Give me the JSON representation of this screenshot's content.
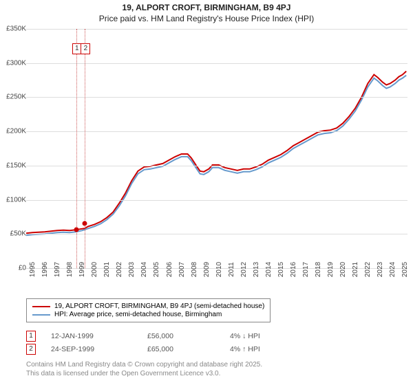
{
  "title_line1": "19, ALPORT CROFT, BIRMINGHAM, B9 4PJ",
  "title_line2": "Price paid vs. HM Land Registry's House Price Index (HPI)",
  "chart": {
    "type": "line",
    "background_color": "#ffffff",
    "grid_color": "#dddddd",
    "axis_color": "#888888",
    "ylim": [
      0,
      350000
    ],
    "ytick_step": 50000,
    "ytick_labels": [
      "£0",
      "£50K",
      "£100K",
      "£150K",
      "£200K",
      "£250K",
      "£300K",
      "£350K"
    ],
    "xlim": [
      1995,
      2025.7
    ],
    "xtick_years": [
      1995,
      1996,
      1997,
      1998,
      1999,
      2000,
      2001,
      2002,
      2003,
      2004,
      2005,
      2006,
      2007,
      2008,
      2009,
      2010,
      2011,
      2012,
      2013,
      2014,
      2015,
      2016,
      2017,
      2018,
      2019,
      2020,
      2021,
      2022,
      2023,
      2024,
      2025
    ],
    "title_fontsize": 12,
    "label_fontsize": 10,
    "series": [
      {
        "name": "property",
        "label": "19, ALPORT CROFT, BIRMINGHAM, B9 4PJ (semi-detached house)",
        "color": "#cc0000",
        "line_width": 2,
        "points": [
          [
            1995.0,
            51000
          ],
          [
            1995.5,
            52000
          ],
          [
            1996.0,
            52500
          ],
          [
            1996.5,
            53000
          ],
          [
            1997.0,
            54000
          ],
          [
            1997.5,
            55000
          ],
          [
            1998.0,
            55500
          ],
          [
            1998.5,
            55000
          ],
          [
            1999.0,
            56000
          ],
          [
            1999.3,
            57000
          ],
          [
            1999.7,
            58000
          ],
          [
            2000.0,
            61000
          ],
          [
            2000.5,
            64000
          ],
          [
            2001.0,
            68000
          ],
          [
            2001.5,
            74000
          ],
          [
            2002.0,
            82000
          ],
          [
            2002.5,
            95000
          ],
          [
            2003.0,
            110000
          ],
          [
            2003.5,
            128000
          ],
          [
            2004.0,
            142000
          ],
          [
            2004.5,
            148000
          ],
          [
            2005.0,
            149000
          ],
          [
            2005.5,
            151000
          ],
          [
            2006.0,
            153000
          ],
          [
            2006.5,
            158000
          ],
          [
            2007.0,
            163000
          ],
          [
            2007.5,
            167000
          ],
          [
            2008.0,
            167000
          ],
          [
            2008.3,
            161000
          ],
          [
            2008.7,
            150000
          ],
          [
            2009.0,
            142000
          ],
          [
            2009.3,
            141000
          ],
          [
            2009.7,
            145000
          ],
          [
            2010.0,
            151000
          ],
          [
            2010.5,
            151000
          ],
          [
            2011.0,
            147000
          ],
          [
            2011.5,
            145000
          ],
          [
            2012.0,
            143000
          ],
          [
            2012.5,
            145000
          ],
          [
            2013.0,
            145000
          ],
          [
            2013.5,
            148000
          ],
          [
            2014.0,
            152000
          ],
          [
            2014.5,
            158000
          ],
          [
            2015.0,
            162000
          ],
          [
            2015.5,
            166000
          ],
          [
            2016.0,
            172000
          ],
          [
            2016.5,
            179000
          ],
          [
            2017.0,
            184000
          ],
          [
            2017.5,
            189000
          ],
          [
            2018.0,
            194000
          ],
          [
            2018.5,
            199000
          ],
          [
            2019.0,
            201000
          ],
          [
            2019.5,
            202000
          ],
          [
            2020.0,
            205000
          ],
          [
            2020.5,
            212000
          ],
          [
            2021.0,
            222000
          ],
          [
            2021.5,
            234000
          ],
          [
            2022.0,
            250000
          ],
          [
            2022.5,
            270000
          ],
          [
            2023.0,
            283000
          ],
          [
            2023.3,
            279000
          ],
          [
            2023.7,
            272000
          ],
          [
            2024.0,
            268000
          ],
          [
            2024.3,
            270000
          ],
          [
            2024.7,
            275000
          ],
          [
            2025.0,
            280000
          ],
          [
            2025.3,
            283000
          ],
          [
            2025.6,
            288000
          ]
        ]
      },
      {
        "name": "hpi",
        "label": "HPI: Average price, semi-detached house, Birmingham",
        "color": "#6699cc",
        "line_width": 2,
        "points": [
          [
            1995.0,
            48000
          ],
          [
            1995.5,
            49000
          ],
          [
            1996.0,
            49500
          ],
          [
            1996.5,
            50000
          ],
          [
            1997.0,
            51000
          ],
          [
            1997.5,
            52000
          ],
          [
            1998.0,
            52500
          ],
          [
            1998.5,
            52000
          ],
          [
            1999.0,
            53000
          ],
          [
            1999.5,
            55000
          ],
          [
            2000.0,
            58000
          ],
          [
            2000.5,
            61000
          ],
          [
            2001.0,
            65000
          ],
          [
            2001.5,
            71000
          ],
          [
            2002.0,
            79000
          ],
          [
            2002.5,
            91000
          ],
          [
            2003.0,
            106000
          ],
          [
            2003.5,
            124000
          ],
          [
            2004.0,
            138000
          ],
          [
            2004.5,
            144000
          ],
          [
            2005.0,
            145000
          ],
          [
            2005.5,
            147000
          ],
          [
            2006.0,
            149000
          ],
          [
            2006.5,
            154000
          ],
          [
            2007.0,
            159000
          ],
          [
            2007.5,
            163000
          ],
          [
            2008.0,
            163000
          ],
          [
            2008.3,
            157000
          ],
          [
            2008.7,
            146000
          ],
          [
            2009.0,
            138000
          ],
          [
            2009.3,
            137000
          ],
          [
            2009.7,
            141000
          ],
          [
            2010.0,
            147000
          ],
          [
            2010.5,
            147000
          ],
          [
            2011.0,
            143000
          ],
          [
            2011.5,
            141000
          ],
          [
            2012.0,
            139000
          ],
          [
            2012.5,
            141000
          ],
          [
            2013.0,
            141000
          ],
          [
            2013.5,
            144000
          ],
          [
            2014.0,
            148000
          ],
          [
            2014.5,
            154000
          ],
          [
            2015.0,
            158000
          ],
          [
            2015.5,
            162000
          ],
          [
            2016.0,
            168000
          ],
          [
            2016.5,
            175000
          ],
          [
            2017.0,
            180000
          ],
          [
            2017.5,
            185000
          ],
          [
            2018.0,
            190000
          ],
          [
            2018.5,
            195000
          ],
          [
            2019.0,
            197000
          ],
          [
            2019.5,
            198000
          ],
          [
            2020.0,
            201000
          ],
          [
            2020.5,
            208000
          ],
          [
            2021.0,
            218000
          ],
          [
            2021.5,
            230000
          ],
          [
            2022.0,
            246000
          ],
          [
            2022.5,
            265000
          ],
          [
            2023.0,
            278000
          ],
          [
            2023.3,
            274000
          ],
          [
            2023.7,
            267000
          ],
          [
            2024.0,
            263000
          ],
          [
            2024.3,
            265000
          ],
          [
            2024.7,
            270000
          ],
          [
            2025.0,
            275000
          ],
          [
            2025.3,
            278000
          ],
          [
            2025.6,
            282000
          ]
        ]
      }
    ],
    "sales": [
      {
        "index": "1",
        "year": 1999.03,
        "price": 56000,
        "date": "12-JAN-1999",
        "price_fmt": "£56,000",
        "vs_hpi": "4% ↓ HPI",
        "box_top_pct": 6
      },
      {
        "index": "2",
        "year": 1999.73,
        "price": 65000,
        "date": "24-SEP-1999",
        "price_fmt": "£65,000",
        "vs_hpi": "4% ↑ HPI",
        "box_top_pct": 6
      }
    ],
    "sale_dot_color": "#cc0000",
    "sale_vline_color": "#cc5555"
  },
  "sale_row_cols": {
    "date_width": 140,
    "price_width": 120
  },
  "footer_line1": "Contains HM Land Registry data © Crown copyright and database right 2025.",
  "footer_line2": "This data is licensed under the Open Government Licence v3.0."
}
